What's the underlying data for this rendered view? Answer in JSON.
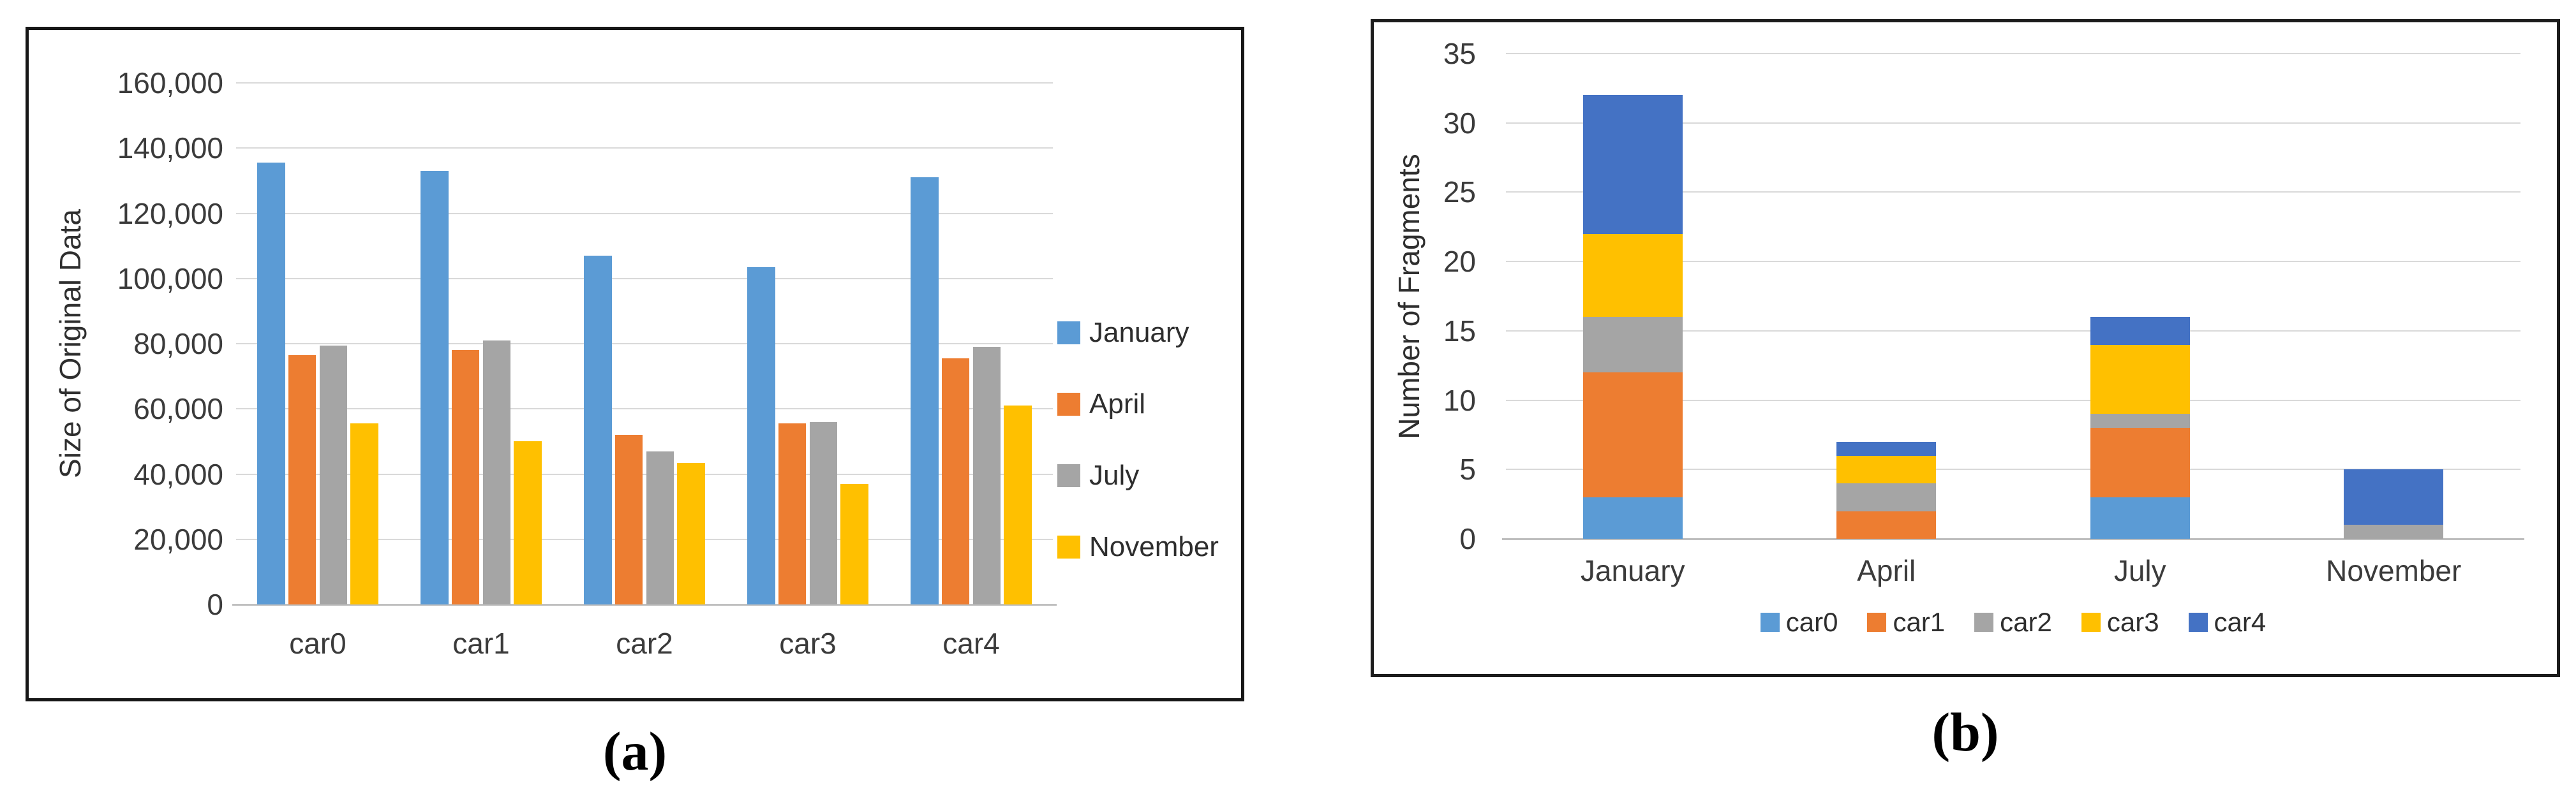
{
  "figure": {
    "caption_a": "(a)",
    "caption_b": "(b)"
  },
  "colors": {
    "blue_light": "#5B9BD5",
    "orange": "#ED7D31",
    "gray": "#A5A5A5",
    "yellow": "#FFC000",
    "blue_dark": "#4472C4",
    "gridline": "#D9D9D9",
    "axis": "#BFBFBF",
    "panel_border": "#161616"
  },
  "chart_data": [
    {
      "type": "bar",
      "title": "",
      "xlabel": "",
      "ylabel": "Size of Original Data",
      "categories": [
        "car0",
        "car1",
        "car2",
        "car3",
        "car4"
      ],
      "series": [
        {
          "name": "January",
          "color": "#5B9BD5",
          "values": [
            135500,
            133000,
            107000,
            103500,
            131000
          ]
        },
        {
          "name": "April",
          "color": "#ED7D31",
          "values": [
            76500,
            78000,
            52000,
            55500,
            75500
          ]
        },
        {
          "name": "July",
          "color": "#A5A5A5",
          "values": [
            79500,
            81000,
            47000,
            56000,
            79000
          ]
        },
        {
          "name": "November",
          "color": "#FFC000",
          "values": [
            55500,
            50000,
            43500,
            37000,
            61000
          ]
        }
      ],
      "ylim": [
        0,
        160000
      ],
      "ytick_step": 20000,
      "yticks_labels": [
        "0",
        "20,000",
        "40,000",
        "60,000",
        "80,000",
        "100,000",
        "120,000",
        "140,000",
        "160,000"
      ],
      "grid": true,
      "legend_position": "right"
    },
    {
      "type": "stacked-bar",
      "title": "",
      "xlabel": "",
      "ylabel": "Number of Fragments",
      "categories": [
        "January",
        "April",
        "July",
        "November"
      ],
      "series": [
        {
          "name": "car0",
          "color": "#5B9BD5",
          "values": [
            3,
            0,
            3,
            0
          ]
        },
        {
          "name": "car1",
          "color": "#ED7D31",
          "values": [
            9,
            2,
            5,
            0
          ]
        },
        {
          "name": "car2",
          "color": "#A5A5A5",
          "values": [
            4,
            2,
            1,
            1
          ]
        },
        {
          "name": "car3",
          "color": "#FFC000",
          "values": [
            6,
            2,
            5,
            0
          ]
        },
        {
          "name": "car4",
          "color": "#4472C4",
          "values": [
            10,
            1,
            2,
            4
          ]
        }
      ],
      "ylim": [
        0,
        35
      ],
      "ytick_step": 5,
      "yticks_labels": [
        "0",
        "5",
        "10",
        "15",
        "20",
        "25",
        "30",
        "35"
      ],
      "grid": true,
      "legend_position": "bottom"
    }
  ]
}
